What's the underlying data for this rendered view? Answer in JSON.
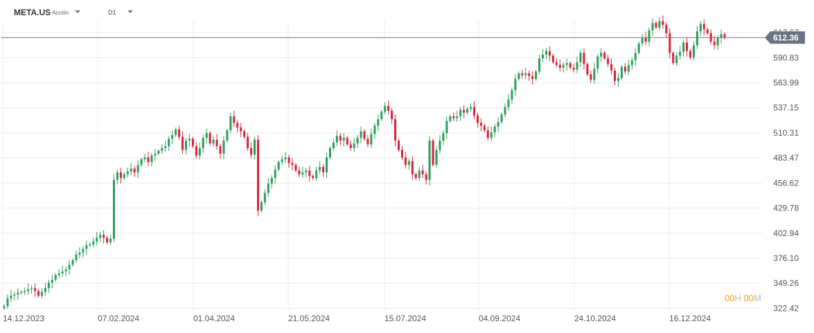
{
  "instrument": {
    "symbol": "META.US",
    "asset_type": "Acción",
    "timeframe": "D1"
  },
  "countdown": {
    "hours": "00",
    "hours_unit": "H",
    "minutes": "00",
    "minutes_unit": "M"
  },
  "colors": {
    "up": "#2e9e5b",
    "down": "#d9253b",
    "price_line": "#777777",
    "price_tag_bg": "#6b7280",
    "grid": "#ececec",
    "text": "#555555"
  },
  "chart_data": {
    "type": "candlestick",
    "title": "",
    "xlabel": "",
    "ylabel": "",
    "ylim": [
      312,
      630
    ],
    "y_ticks": [
      "322.42",
      "349.26",
      "376.10",
      "402.94",
      "429.78",
      "456.62",
      "483.47",
      "510.31",
      "537.15",
      "563.99",
      "590.83",
      "617.67"
    ],
    "x_ticks": [
      "14.12.2023",
      "07.02.2024",
      "01.04.2024",
      "21.05.2024",
      "15.07.2024",
      "04.09.2024",
      "24.10.2024",
      "16.12.2024"
    ],
    "last_price": 612.36,
    "close": [
      325,
      333,
      336,
      337,
      339,
      340,
      341,
      343,
      344,
      341,
      336,
      340,
      344,
      350,
      353,
      358,
      360,
      362,
      364,
      369,
      374,
      380,
      382,
      386,
      390,
      391,
      394,
      398,
      401,
      398,
      393,
      397,
      460,
      468,
      462,
      466,
      469,
      472,
      468,
      476,
      482,
      484,
      479,
      486,
      488,
      491,
      494,
      496,
      504,
      508,
      514,
      506,
      492,
      502,
      504,
      496,
      486,
      494,
      505,
      510,
      499,
      503,
      496,
      488,
      502,
      513,
      528,
      521,
      516,
      512,
      506,
      494,
      487,
      503,
      427,
      436,
      446,
      456,
      462,
      471,
      479,
      482,
      484,
      478,
      476,
      470,
      466,
      468,
      470,
      464,
      462,
      470,
      474,
      468,
      484,
      494,
      500,
      507,
      502,
      505,
      498,
      494,
      499,
      505,
      512,
      504,
      498,
      509,
      518,
      525,
      533,
      539,
      534,
      525,
      502,
      492,
      484,
      476,
      480,
      466,
      462,
      470,
      466,
      460,
      502,
      476,
      492,
      502,
      510,
      523,
      528,
      526,
      528,
      535,
      532,
      536,
      538,
      529,
      521,
      518,
      513,
      505,
      511,
      517,
      522,
      530,
      538,
      546,
      556,
      568,
      574,
      572,
      574,
      571,
      568,
      576,
      590,
      594,
      598,
      593,
      586,
      583,
      580,
      583,
      585,
      580,
      578,
      586,
      596,
      584,
      573,
      567,
      579,
      592,
      596,
      590,
      584,
      577,
      566,
      569,
      581,
      576,
      583,
      588,
      596,
      606,
      612,
      608,
      620,
      628,
      623,
      630,
      626,
      617,
      596,
      585,
      593,
      597,
      607,
      598,
      591,
      604,
      619,
      627,
      621,
      617,
      608,
      604,
      612,
      616,
      612
    ],
    "open_prev_points": 0
  }
}
